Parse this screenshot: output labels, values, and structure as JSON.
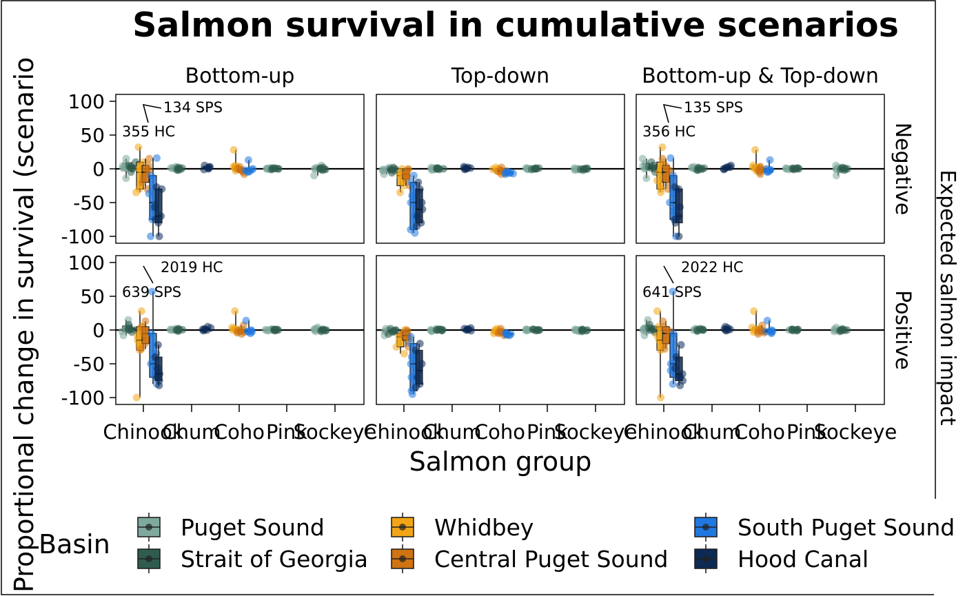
{
  "chart_data": {
    "type": "boxplot",
    "title": "Salmon survival in cumulative scenarios",
    "xlabel": "Salmon group",
    "ylabel": "Proportional change in survival (scenario",
    "right_label": "Expected salmon impact",
    "categories": [
      "Chinook",
      "Chum",
      "Coho",
      "Pink",
      "Sockeye"
    ],
    "facet_columns": [
      "Bottom-up",
      "Top-down",
      "Bottom-up & Top-down"
    ],
    "facet_rows": [
      "Negative",
      "Positive"
    ],
    "y_ticks": [
      "100",
      "50",
      "0",
      "-50",
      "-100"
    ],
    "y_tick_values": [
      100,
      50,
      0,
      -50,
      -100
    ],
    "ylim": [
      -110,
      110
    ],
    "reference_line": 0,
    "legend": {
      "title": "Basin",
      "position": "bottom",
      "entries": [
        {
          "name": "Puget Sound",
          "color": "#7fa99e"
        },
        {
          "name": "Strait of Georgia",
          "color": "#2f5c4e"
        },
        {
          "name": "Whidbey",
          "color": "#f2a516"
        },
        {
          "name": "Central Puget Sound",
          "color": "#d07312"
        },
        {
          "name": "South Puget Sound",
          "color": "#1f78e0"
        },
        {
          "name": "Hood Canal",
          "color": "#0d2a55"
        }
      ]
    },
    "annotations": [
      {
        "row": 0,
        "col": 0,
        "labels": [
          "134 SPS",
          "355 HC"
        ]
      },
      {
        "row": 0,
        "col": 2,
        "labels": [
          "135 SPS",
          "356 HC"
        ]
      },
      {
        "row": 1,
        "col": 0,
        "labels": [
          "2019 HC",
          "639 SPS"
        ]
      },
      {
        "row": 1,
        "col": 2,
        "labels": [
          "2022 HC",
          "641 SPS"
        ]
      }
    ],
    "panels": [
      {
        "row": 0,
        "col": 0,
        "series": [
          [
            [
              -14,
              0,
              2,
              8,
              15
            ],
            [
              -2,
              0,
              1,
              2,
              3
            ],
            null,
            [
              -1,
              0,
              0,
              1,
              1
            ],
            [
              -10,
              -1,
              0,
              2,
              5
            ]
          ],
          [
            [
              -5,
              0,
              2,
              5,
              10
            ],
            [
              -2,
              -1,
              0,
              1,
              2
            ],
            null,
            [
              -1,
              0,
              0,
              1,
              1
            ],
            [
              -2,
              -1,
              0,
              1,
              2
            ]
          ],
          [
            [
              -35,
              -30,
              -5,
              10,
              32
            ],
            null,
            [
              -3,
              0,
              2,
              5,
              28
            ],
            null,
            null
          ],
          [
            [
              -30,
              -20,
              -5,
              5,
              15
            ],
            null,
            [
              -8,
              -5,
              -2,
              0,
              3
            ],
            null,
            null
          ],
          [
            [
              -100,
              -75,
              -50,
              -10,
              16
            ],
            null,
            [
              -5,
              -4,
              -2,
              0,
              13
            ],
            null,
            null
          ],
          [
            [
              -100,
              -80,
              -70,
              -30,
              -27
            ],
            [
              -1,
              0,
              2,
              3,
              5
            ],
            null,
            null,
            null
          ]
        ]
      },
      {
        "row": 0,
        "col": 1,
        "series": [
          [
            [
              -8,
              -3,
              -1,
              0,
              2
            ],
            [
              -2,
              -1,
              0,
              1,
              2
            ],
            null,
            [
              -1,
              0,
              0,
              1,
              1
            ],
            [
              -2,
              -1,
              0,
              0,
              1
            ]
          ],
          [
            [
              -6,
              -3,
              -1,
              0,
              2
            ],
            [
              -1,
              0,
              0,
              1,
              1
            ],
            null,
            [
              -1,
              0,
              0,
              1,
              1
            ],
            [
              -2,
              -1,
              0,
              0,
              1
            ]
          ],
          [
            [
              -35,
              -25,
              -10,
              -5,
              0
            ],
            null,
            [
              -5,
              -3,
              -1,
              0,
              2
            ],
            null,
            null
          ],
          [
            [
              -25,
              -15,
              -8,
              -2,
              0
            ],
            null,
            [
              -8,
              -6,
              -4,
              -2,
              2
            ],
            null,
            null
          ],
          [
            [
              -95,
              -90,
              -50,
              -20,
              -10
            ],
            null,
            [
              -8,
              -7,
              -6,
              -5,
              -4
            ],
            null,
            null
          ],
          [
            [
              -85,
              -80,
              -60,
              -30,
              -20
            ],
            [
              -1,
              0,
              1,
              2,
              3
            ],
            null,
            null,
            null
          ]
        ]
      },
      {
        "row": 0,
        "col": 2,
        "series": [
          [
            [
              -14,
              0,
              2,
              8,
              15
            ],
            [
              -2,
              0,
              1,
              2,
              3
            ],
            null,
            [
              -1,
              0,
              0,
              1,
              1
            ],
            [
              -10,
              -1,
              0,
              2,
              5
            ]
          ],
          [
            [
              -5,
              0,
              2,
              5,
              10
            ],
            [
              -2,
              -1,
              0,
              1,
              2
            ],
            null,
            [
              -1,
              0,
              0,
              1,
              1
            ],
            [
              -2,
              -1,
              0,
              1,
              2
            ]
          ],
          [
            [
              -35,
              -30,
              -5,
              10,
              32
            ],
            null,
            [
              -3,
              0,
              2,
              5,
              28
            ],
            null,
            null
          ],
          [
            [
              -30,
              -20,
              -5,
              5,
              15
            ],
            null,
            [
              -8,
              -5,
              -2,
              0,
              3
            ],
            null,
            null
          ],
          [
            [
              -100,
              -75,
              -50,
              -10,
              16
            ],
            null,
            [
              -5,
              -4,
              -2,
              0,
              13
            ],
            null,
            null
          ],
          [
            [
              -100,
              -80,
              -70,
              -30,
              -27
            ],
            [
              -1,
              0,
              2,
              3,
              5
            ],
            null,
            null,
            null
          ]
        ]
      },
      {
        "row": 1,
        "col": 0,
        "series": [
          [
            [
              -8,
              -2,
              1,
              6,
              15
            ],
            [
              -2,
              0,
              0,
              1,
              2
            ],
            null,
            [
              -1,
              0,
              0,
              1,
              1
            ],
            [
              -2,
              0,
              1,
              2,
              4
            ]
          ],
          [
            [
              -3,
              0,
              1,
              3,
              8
            ],
            [
              -1,
              0,
              0,
              1,
              2
            ],
            null,
            [
              -1,
              0,
              0,
              1,
              1
            ],
            [
              -2,
              -1,
              0,
              0,
              1
            ]
          ],
          [
            [
              -100,
              -30,
              -15,
              5,
              28
            ],
            null,
            [
              -3,
              0,
              1,
              4,
              28
            ],
            null,
            null
          ],
          [
            [
              -28,
              -20,
              -5,
              5,
              13
            ],
            null,
            [
              -6,
              -4,
              -2,
              0,
              7
            ],
            null,
            null
          ],
          [
            [
              -80,
              -70,
              -50,
              -5,
              57
            ],
            null,
            [
              -5,
              -3,
              -2,
              0,
              14
            ],
            null,
            null
          ],
          [
            [
              -82,
              -75,
              -65,
              -40,
              -22
            ],
            [
              -1,
              0,
              1,
              3,
              5
            ],
            null,
            null,
            null
          ]
        ]
      },
      {
        "row": 1,
        "col": 1,
        "series": [
          [
            [
              -8,
              -3,
              -1,
              0,
              2
            ],
            [
              -2,
              -1,
              0,
              1,
              2
            ],
            null,
            [
              -1,
              0,
              0,
              1,
              1
            ],
            [
              -2,
              -1,
              0,
              0,
              1
            ]
          ],
          [
            [
              -6,
              -3,
              -1,
              0,
              2
            ],
            [
              -1,
              0,
              0,
              1,
              1
            ],
            null,
            [
              -1,
              0,
              0,
              1,
              1
            ],
            [
              -2,
              -1,
              0,
              0,
              1
            ]
          ],
          [
            [
              -35,
              -25,
              -10,
              -5,
              0
            ],
            null,
            [
              -5,
              -3,
              -1,
              0,
              2
            ],
            null,
            null
          ],
          [
            [
              -25,
              -15,
              -8,
              -2,
              0
            ],
            null,
            [
              -8,
              -6,
              -4,
              -2,
              2
            ],
            null,
            null
          ],
          [
            [
              -95,
              -90,
              -50,
              -20,
              -10
            ],
            null,
            [
              -8,
              -7,
              -6,
              -5,
              -4
            ],
            null,
            null
          ],
          [
            [
              -85,
              -80,
              -60,
              -30,
              -20
            ],
            [
              -1,
              0,
              1,
              2,
              3
            ],
            null,
            null,
            null
          ]
        ]
      },
      {
        "row": 1,
        "col": 2,
        "series": [
          [
            [
              -8,
              -2,
              1,
              6,
              15
            ],
            [
              -2,
              0,
              0,
              1,
              2
            ],
            null,
            [
              -1,
              0,
              0,
              1,
              1
            ],
            [
              -2,
              0,
              1,
              2,
              4
            ]
          ],
          [
            [
              -3,
              0,
              1,
              3,
              8
            ],
            [
              -1,
              0,
              0,
              1,
              2
            ],
            null,
            [
              -1,
              0,
              0,
              1,
              1
            ],
            [
              -2,
              -1,
              0,
              0,
              1
            ]
          ],
          [
            [
              -100,
              -30,
              -15,
              5,
              28
            ],
            null,
            [
              -3,
              0,
              1,
              4,
              28
            ],
            null,
            null
          ],
          [
            [
              -28,
              -20,
              -5,
              5,
              13
            ],
            null,
            [
              -6,
              -4,
              -2,
              0,
              7
            ],
            null,
            null
          ],
          [
            [
              -80,
              -70,
              -50,
              -5,
              57
            ],
            null,
            [
              -5,
              -3,
              -2,
              0,
              14
            ],
            null,
            null
          ],
          [
            [
              -82,
              -75,
              -65,
              -40,
              -22
            ],
            [
              -1,
              0,
              1,
              3,
              5
            ],
            null,
            null,
            null
          ]
        ]
      }
    ]
  }
}
